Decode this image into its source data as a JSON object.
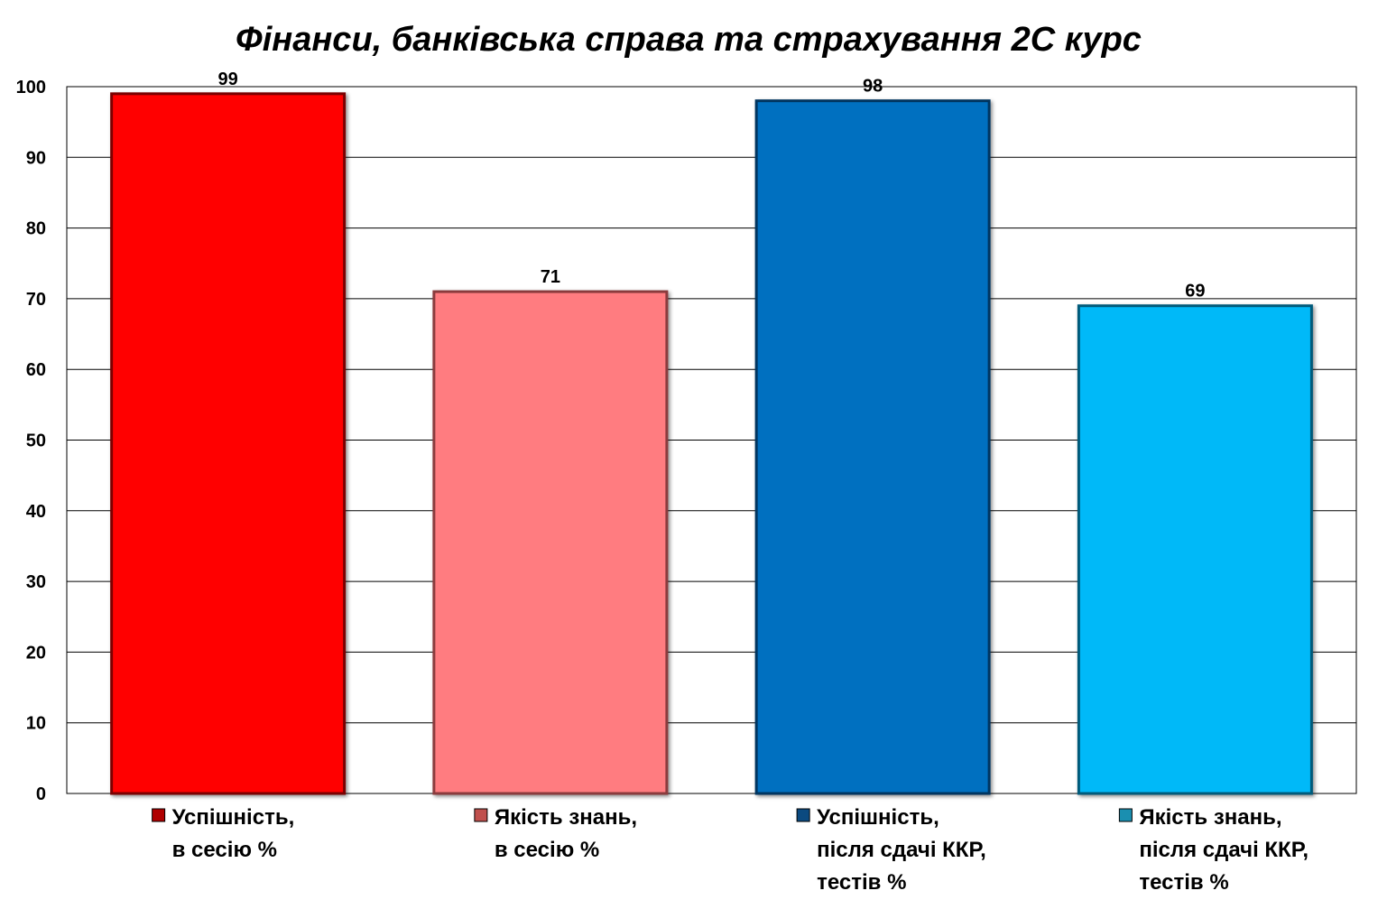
{
  "chart_data": {
    "type": "bar",
    "title": "Фінанси, банківська справа та страхування 2С курс",
    "xlabel": "",
    "ylabel": "",
    "ylim": [
      0,
      100
    ],
    "yticks": [
      "0",
      "10",
      "20",
      "30",
      "40",
      "50",
      "60",
      "70",
      "80",
      "90",
      "100"
    ],
    "grid": true,
    "categories": [
      [
        "Успішність,",
        "в сесію %"
      ],
      [
        "Якість знань,",
        "в сесію %"
      ],
      [
        "Успішність,",
        "після сдачі ККР,",
        "тестів %"
      ],
      [
        "Якість знань,",
        "після сдачі ККР,",
        "тестів %"
      ]
    ],
    "values": [
      99,
      71,
      98,
      69
    ],
    "data_labels": [
      "99",
      "71",
      "98",
      "69"
    ],
    "colors": [
      "#ff0000",
      "#ff7c80",
      "#0070c0",
      "#00b9f8"
    ],
    "edge_colors": [
      "#7a0000",
      "#8a3b3e",
      "#003560",
      "#005a7a"
    ],
    "legend_marker_colors": [
      "#b00000",
      "#c0504d",
      "#0b4a80",
      "#1a8fb0"
    ]
  }
}
